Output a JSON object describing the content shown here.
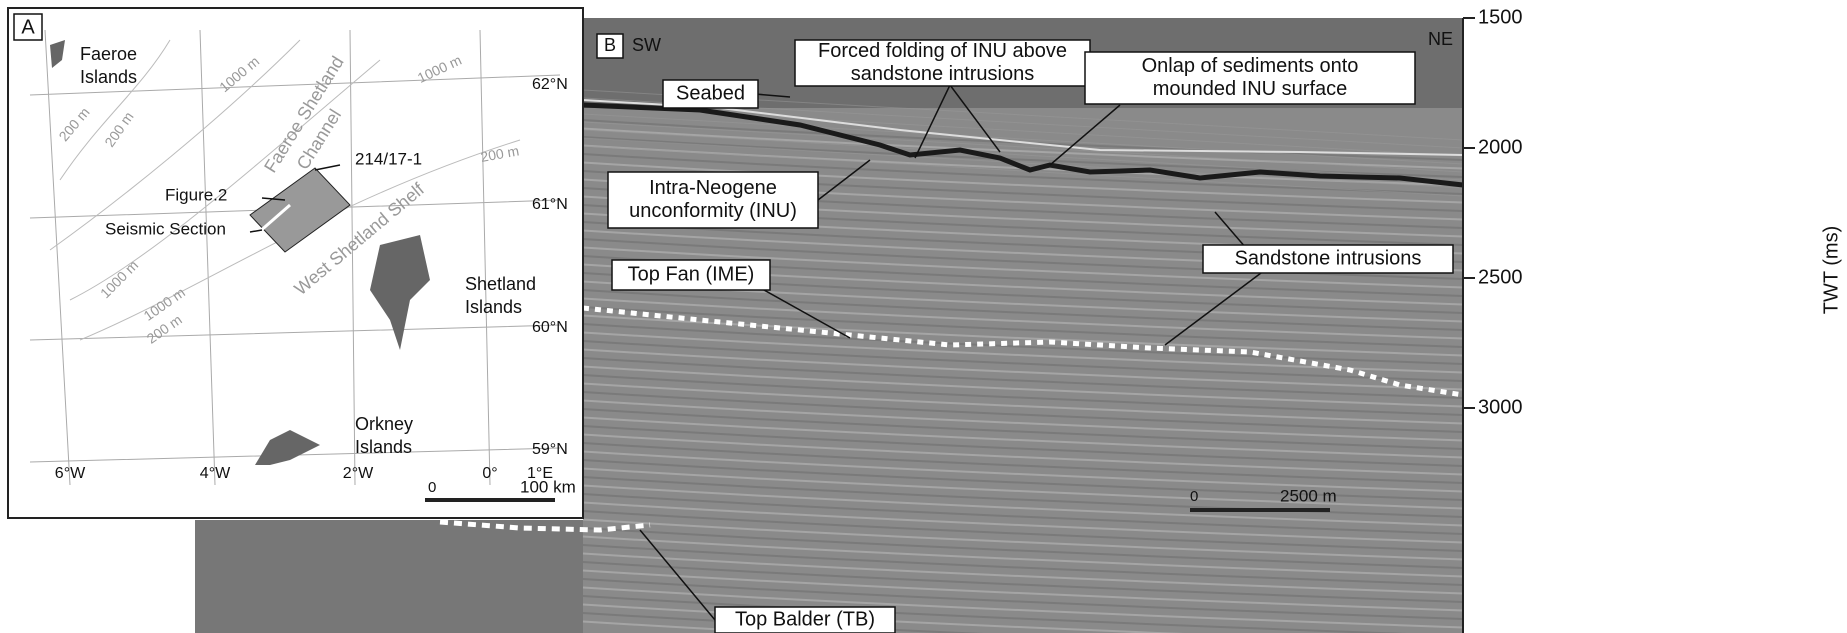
{
  "panel_a": {
    "label": "A",
    "places": [
      [
        "Faeroe",
        "Islands"
      ],
      [
        "Shetland",
        "Islands"
      ],
      [
        "Orkney",
        "Islands"
      ]
    ],
    "features": [
      "Faeroe Shetland",
      "Channel",
      "West Shetland Shelf"
    ],
    "contours": [
      "1000 m",
      "1000 m",
      "200 m",
      "200 m",
      "1000 m",
      "1000 m",
      "200 m",
      "200 m"
    ],
    "lat_labels": [
      "62°N",
      "61°N",
      "60°N",
      "59°N"
    ],
    "lon_labels": [
      "6°W",
      "4°W",
      "2°W",
      "0°",
      "1°E"
    ],
    "well": "214/17-1",
    "figure": "Figure.2",
    "section": "Seismic Section",
    "scale": [
      "0",
      "100 km"
    ]
  },
  "panel_b": {
    "label": "B",
    "left": "SW",
    "right": "NE",
    "annotations": [
      [
        "Seabed"
      ],
      [
        "Forced folding of INU above",
        "sandstone intrusions"
      ],
      [
        "Onlap of sediments onto",
        "mounded INU surface"
      ],
      [
        "Intra-Neogene",
        "unconformity (INU)"
      ],
      [
        "Sandstone intrusions"
      ],
      [
        "Top Fan (IME)"
      ],
      [
        "Top Balder (TB)"
      ]
    ],
    "scale": [
      "0",
      "2500 m"
    ]
  },
  "axis": {
    "title": "TWT (ms)",
    "ticks": [
      1500,
      2000,
      2500,
      3000
    ]
  }
}
